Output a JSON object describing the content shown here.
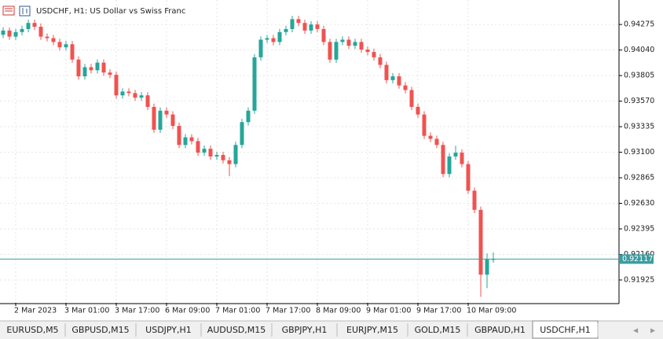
{
  "header": {
    "title": "USDCHF, H1:  US Dollar vs Swiss Franc"
  },
  "chart_data": {
    "type": "candlestick",
    "categories": [
      null,
      null,
      "2 Mar 2023",
      null,
      null,
      null,
      null,
      null,
      null,
      null,
      "3 Mar 01:00",
      null,
      null,
      null,
      null,
      null,
      null,
      null,
      "3 Mar 17:00",
      null,
      null,
      null,
      null,
      null,
      null,
      null,
      "6 Mar 09:00",
      null,
      null,
      null,
      null,
      null,
      null,
      null,
      "7 Mar 01:00",
      null,
      null,
      null,
      null,
      null,
      null,
      null,
      "7 Mar 17:00",
      null,
      null,
      null,
      null,
      null,
      null,
      null,
      "8 Mar 09:00",
      null,
      null,
      null,
      null,
      null,
      null,
      null,
      "9 Mar 01:00",
      null,
      null,
      null,
      null,
      null,
      null,
      null,
      "9 Mar 17:00",
      null,
      null,
      null,
      null,
      null,
      null,
      null,
      "10 Mar 09:00",
      null,
      null,
      null,
      null
    ],
    "open": [
      0.9418,
      0.94219,
      0.94163,
      0.94205,
      0.94233,
      0.94289,
      0.94254,
      0.94163,
      0.94149,
      0.94114,
      0.94065,
      0.94093,
      0.93952,
      0.93798,
      0.93882,
      0.93854,
      0.93924,
      0.93833,
      0.93812,
      0.93623,
      0.93658,
      0.93644,
      0.93602,
      0.93623,
      0.93517,
      0.93307,
      0.93482,
      0.93447,
      0.93342,
      0.93167,
      0.93237,
      0.93202,
      0.93096,
      0.93132,
      0.93061,
      0.93075,
      0.93026,
      0.92991,
      0.93167,
      0.93377,
      0.93482,
      0.93973,
      0.94135,
      0.94149,
      0.94114,
      0.94205,
      0.94233,
      0.94324,
      0.94289,
      0.94219,
      0.94275,
      0.94233,
      0.94114,
      0.93952,
      0.94114,
      0.94135,
      0.94079,
      0.94114,
      0.94044,
      0.94022,
      0.93973,
      0.93903,
      0.93763,
      0.93798,
      0.93714,
      0.93672,
      0.93517,
      0.93447,
      0.93251,
      0.93223,
      0.93167,
      0.929,
      0.93061,
      0.93096,
      0.92991,
      0.92746,
      0.9257,
      0.91974,
      0.92114
    ],
    "high": [
      0.94249,
      0.94249,
      0.94235,
      0.94263,
      0.94319,
      0.94319,
      0.94284,
      0.94193,
      0.94179,
      0.94144,
      0.94123,
      0.94123,
      0.93982,
      0.93912,
      0.93912,
      0.93954,
      0.93954,
      0.93863,
      0.93842,
      0.93688,
      0.93688,
      0.93674,
      0.93653,
      0.93653,
      0.93547,
      0.93512,
      0.93512,
      0.93477,
      0.93372,
      0.93267,
      0.93267,
      0.93232,
      0.93162,
      0.93162,
      0.93105,
      0.93105,
      0.93056,
      0.93197,
      0.93407,
      0.93512,
      0.94003,
      0.94165,
      0.94179,
      0.94179,
      0.94235,
      0.94263,
      0.94354,
      0.94354,
      0.94319,
      0.94305,
      0.94305,
      0.94263,
      0.94144,
      0.94144,
      0.94165,
      0.94165,
      0.94144,
      0.94144,
      0.94074,
      0.94052,
      0.94003,
      0.93933,
      0.93828,
      0.93828,
      0.93744,
      0.93702,
      0.93547,
      0.93477,
      0.93281,
      0.93253,
      0.93197,
      0.93091,
      0.9316,
      0.93126,
      0.93021,
      0.92776,
      0.926,
      0.9217,
      0.9218
    ],
    "low": [
      0.9415,
      0.94133,
      0.94133,
      0.94175,
      0.94203,
      0.94224,
      0.94133,
      0.94119,
      0.94084,
      0.94035,
      0.94035,
      0.93922,
      0.93768,
      0.93768,
      0.93824,
      0.93824,
      0.93803,
      0.93782,
      0.93593,
      0.93593,
      0.93614,
      0.93572,
      0.93572,
      0.93487,
      0.93277,
      0.93277,
      0.93417,
      0.93312,
      0.93137,
      0.93137,
      0.93172,
      0.93066,
      0.93066,
      0.93031,
      0.93031,
      0.92996,
      0.9288,
      0.92961,
      0.93137,
      0.93347,
      0.93452,
      0.93943,
      0.94105,
      0.94084,
      0.94084,
      0.94175,
      0.94203,
      0.94259,
      0.94189,
      0.94189,
      0.94203,
      0.94084,
      0.93922,
      0.93922,
      0.94084,
      0.94049,
      0.94049,
      0.94014,
      0.93992,
      0.93943,
      0.93873,
      0.93733,
      0.93733,
      0.93684,
      0.93642,
      0.93487,
      0.93417,
      0.93221,
      0.93193,
      0.93137,
      0.9287,
      0.9287,
      0.93031,
      0.92961,
      0.92716,
      0.9254,
      0.9177,
      0.9185,
      0.92084
    ],
    "close": [
      0.94219,
      0.94163,
      0.94205,
      0.94233,
      0.94289,
      0.94254,
      0.94163,
      0.94149,
      0.94114,
      0.94065,
      0.94093,
      0.93952,
      0.93798,
      0.93882,
      0.93854,
      0.93924,
      0.93833,
      0.93812,
      0.93623,
      0.93658,
      0.93644,
      0.93602,
      0.93623,
      0.93517,
      0.93307,
      0.93482,
      0.93447,
      0.93342,
      0.93167,
      0.93237,
      0.93202,
      0.93096,
      0.93132,
      0.93061,
      0.93075,
      0.93026,
      0.92991,
      0.93167,
      0.93377,
      0.93482,
      0.93973,
      0.94135,
      0.94149,
      0.94114,
      0.94205,
      0.94233,
      0.94324,
      0.94289,
      0.94219,
      0.94275,
      0.94233,
      0.94114,
      0.93952,
      0.94114,
      0.94135,
      0.94079,
      0.94114,
      0.94044,
      0.94022,
      0.93973,
      0.93903,
      0.93763,
      0.93798,
      0.93714,
      0.93672,
      0.93517,
      0.93447,
      0.93251,
      0.93223,
      0.93167,
      0.929,
      0.93061,
      0.93096,
      0.92991,
      0.92746,
      0.9257,
      0.91974,
      0.92114,
      0.92117
    ],
    "up_color": "#26a69a",
    "down_color": "#ef5350",
    "ylim": [
      0.91715,
      0.945
    ],
    "yticks": [
      0.94275,
      {
        "value": 0.9404,
        "label": "0.94040"
      },
      0.93805,
      {
        "value": 0.9357,
        "label": "0.93570"
      },
      0.93335,
      {
        "value": 0.931,
        "label": "0.93100"
      },
      0.92865,
      {
        "value": 0.9263,
        "label": "0.92630"
      },
      0.92395,
      {
        "value": 0.9216,
        "label": "0.92160"
      },
      0.91925
    ],
    "last_price": 0.92117,
    "last_price_color": "#3a9da0",
    "grid": true
  },
  "tabs": [
    {
      "label": "EURUSD,M5"
    },
    {
      "label": "GBPUSD,M15"
    },
    {
      "label": "USDJPY,H1"
    },
    {
      "label": "AUDUSD,M15"
    },
    {
      "label": "GBPJPY,H1"
    },
    {
      "label": "EURJPY,M15"
    },
    {
      "label": "GOLD,M15"
    },
    {
      "label": "GBPAUD,H1"
    },
    {
      "label": "USDCHF,H1",
      "active": true
    }
  ]
}
